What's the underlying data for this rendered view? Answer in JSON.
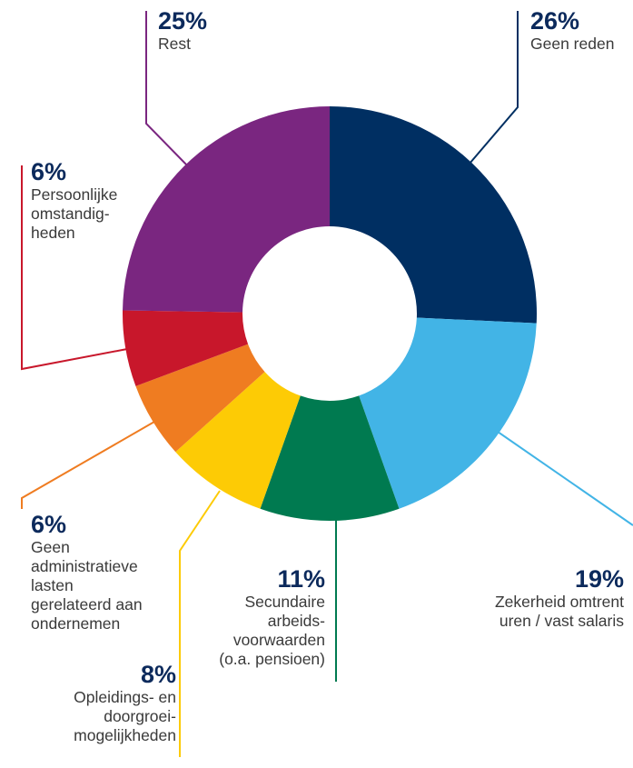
{
  "chart_data": {
    "type": "pie",
    "variant": "donut",
    "unit": "%",
    "slices": [
      {
        "label": "Geen reden",
        "value": 26,
        "pct_text": "26%",
        "color": "#002f62",
        "text": "Geen reden"
      },
      {
        "label": "Zekerheid omtrent uren / vast salaris",
        "value": 19,
        "pct_text": "19%",
        "color": "#42b4e6",
        "text": "Zekerheid omtrent\nuren / vast salaris"
      },
      {
        "label": "Secundaire arbeidsvoorwaarden (o.a. pensioen)",
        "value": 11,
        "pct_text": "11%",
        "color": "#007a50",
        "text": "Secundaire\narbeids-\nvoorwaarden\n(o.a. pensioen)"
      },
      {
        "label": "Opleidings- en doorgroeimogelijkheden",
        "value": 8,
        "pct_text": "8%",
        "color": "#fdcb05",
        "text": "Opleidings- en\ndoorgroei-\nmogelijkheden"
      },
      {
        "label": "Geen administratieve lasten gerelateerd aan ondernemen",
        "value": 6,
        "pct_text": "6%",
        "color": "#ef7c21",
        "text": "Geen\nadministratieve\nlasten\ngerelateerd aan\nondernemen"
      },
      {
        "label": "Persoonlijke omstandigheden",
        "value": 6,
        "pct_text": "6%",
        "color": "#c8172b",
        "text": "Persoonlijke\nomstandig-\nheden"
      },
      {
        "label": "Rest",
        "value": 25,
        "pct_text": "25%",
        "color": "#7a2680",
        "text": "Rest"
      }
    ]
  }
}
